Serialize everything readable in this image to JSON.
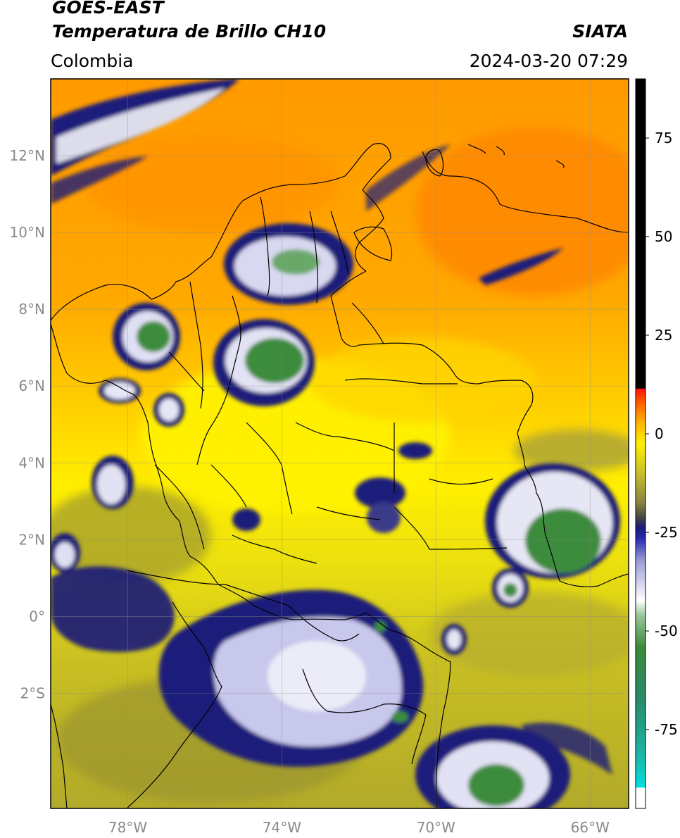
{
  "header": {
    "satellite": "GOES-EAST",
    "product": "Temperatura de Brillo CH10",
    "agency": "SIATA",
    "region": "Colombia",
    "timestamp": "2024-03-20 07:29"
  },
  "map": {
    "lon_range": [
      -80,
      -65
    ],
    "lat_range": [
      -5,
      14
    ],
    "lon_ticks": [
      {
        "value": -78,
        "label": "78°W"
      },
      {
        "value": -74,
        "label": "74°W"
      },
      {
        "value": -70,
        "label": "70°W"
      },
      {
        "value": -66,
        "label": "66°W"
      }
    ],
    "lat_ticks": [
      {
        "value": 12,
        "label": "12°N"
      },
      {
        "value": 10,
        "label": "10°N"
      },
      {
        "value": 8,
        "label": "8°N"
      },
      {
        "value": 6,
        "label": "6°N"
      },
      {
        "value": 4,
        "label": "4°N"
      },
      {
        "value": 2,
        "label": "2°N"
      },
      {
        "value": 0,
        "label": "0°"
      },
      {
        "value": -2,
        "label": "2°S"
      }
    ],
    "colors": {
      "warm_orange": "#ff9a00",
      "yellow": "#ffef00",
      "olive": "#b8b02a",
      "navy": "#1a1a7a",
      "white": "#ffffff",
      "green": "#3c8c3c"
    }
  },
  "colorbar": {
    "range": [
      -95,
      90
    ],
    "ticks": [
      {
        "value": 75,
        "label": "75"
      },
      {
        "value": 50,
        "label": "50"
      },
      {
        "value": 25,
        "label": "25"
      },
      {
        "value": 0,
        "label": "0"
      },
      {
        "value": -25,
        "label": "-25"
      },
      {
        "value": -50,
        "label": "-50"
      },
      {
        "value": -75,
        "label": "-75"
      }
    ]
  }
}
